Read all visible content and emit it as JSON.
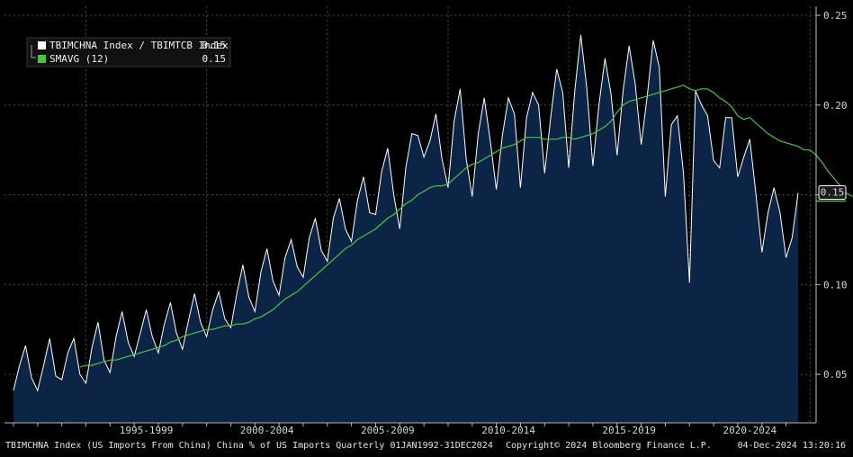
{
  "chart_data": {
    "type": "area",
    "x_start": "1992-Q1",
    "x_end": "2024-Q4",
    "frequency": "quarterly",
    "x_tick_labels": [
      "1995-1999",
      "2000-2004",
      "2005-2009",
      "2010-2014",
      "2015-2019",
      "2020-2024"
    ],
    "y_tick_labels": [
      "0.05",
      "0.10",
      "0.15",
      "0.20",
      "0.25"
    ],
    "y_ticks": [
      0.05,
      0.1,
      0.15,
      0.2,
      0.25
    ],
    "ylim": [
      0.023,
      0.255
    ],
    "grid": true,
    "legend_position": "top-left",
    "series": [
      {
        "name": "TBIMCHNA Index / TBIMTCB Index",
        "last_label": "0.15",
        "color": "#ffffff",
        "fill": "#0c2446",
        "values": [
          0.041,
          0.055,
          0.066,
          0.048,
          0.041,
          0.055,
          0.07,
          0.049,
          0.047,
          0.062,
          0.07,
          0.05,
          0.045,
          0.065,
          0.079,
          0.058,
          0.051,
          0.071,
          0.085,
          0.068,
          0.06,
          0.073,
          0.086,
          0.071,
          0.062,
          0.078,
          0.09,
          0.073,
          0.064,
          0.08,
          0.095,
          0.079,
          0.071,
          0.086,
          0.096,
          0.081,
          0.076,
          0.095,
          0.111,
          0.093,
          0.085,
          0.107,
          0.12,
          0.102,
          0.094,
          0.115,
          0.125,
          0.11,
          0.104,
          0.126,
          0.137,
          0.119,
          0.113,
          0.137,
          0.148,
          0.131,
          0.124,
          0.147,
          0.16,
          0.14,
          0.139,
          0.163,
          0.176,
          0.15,
          0.131,
          0.165,
          0.184,
          0.183,
          0.171,
          0.18,
          0.195,
          0.17,
          0.154,
          0.191,
          0.209,
          0.17,
          0.149,
          0.184,
          0.204,
          0.18,
          0.153,
          0.183,
          0.204,
          0.195,
          0.154,
          0.193,
          0.207,
          0.2,
          0.162,
          0.193,
          0.22,
          0.207,
          0.165,
          0.208,
          0.239,
          0.209,
          0.166,
          0.2,
          0.226,
          0.206,
          0.172,
          0.208,
          0.233,
          0.212,
          0.178,
          0.205,
          0.236,
          0.221,
          0.149,
          0.189,
          0.194,
          0.162,
          0.101,
          0.208,
          0.2,
          0.194,
          0.169,
          0.165,
          0.193,
          0.193,
          0.16,
          0.171,
          0.181,
          0.151,
          0.118,
          0.14,
          0.154,
          0.14,
          0.115,
          0.126,
          0.151
        ]
      },
      {
        "name": "SMAVG (12)",
        "last_label": "0.15",
        "color": "#46c83c",
        "start_index": 11,
        "values": [
          0.054,
          0.055,
          0.055,
          0.056,
          0.057,
          0.058,
          0.058,
          0.059,
          0.06,
          0.061,
          0.062,
          0.063,
          0.064,
          0.065,
          0.066,
          0.068,
          0.069,
          0.071,
          0.072,
          0.073,
          0.074,
          0.075,
          0.075,
          0.076,
          0.077,
          0.077,
          0.078,
          0.078,
          0.079,
          0.081,
          0.082,
          0.084,
          0.086,
          0.089,
          0.092,
          0.094,
          0.096,
          0.099,
          0.102,
          0.105,
          0.108,
          0.111,
          0.114,
          0.117,
          0.12,
          0.122,
          0.125,
          0.127,
          0.129,
          0.131,
          0.134,
          0.137,
          0.139,
          0.142,
          0.145,
          0.147,
          0.15,
          0.152,
          0.154,
          0.155,
          0.155,
          0.156,
          0.159,
          0.162,
          0.165,
          0.167,
          0.168,
          0.17,
          0.172,
          0.174,
          0.176,
          0.177,
          0.178,
          0.18,
          0.182,
          0.182,
          0.182,
          0.181,
          0.181,
          0.181,
          0.182,
          0.182,
          0.181,
          0.182,
          0.183,
          0.184,
          0.186,
          0.188,
          0.191,
          0.196,
          0.2,
          0.202,
          0.203,
          0.204,
          0.205,
          0.206,
          0.207,
          0.208,
          0.209,
          0.21,
          0.211,
          0.209,
          0.208,
          0.209,
          0.209,
          0.207,
          0.204,
          0.202,
          0.199,
          0.194,
          0.192,
          0.193,
          0.19,
          0.187,
          0.184,
          0.182,
          0.18,
          0.179,
          0.178,
          0.177,
          0.175,
          0.175,
          0.172,
          0.168,
          0.163,
          0.159,
          0.155,
          0.151,
          0.149
        ]
      }
    ]
  },
  "footer": {
    "left": "TBIMCHNA Index (US Imports From China) China % of US Imports  Quarterly 01JAN1992-31DEC2024",
    "center": "Copyright© 2024 Bloomberg Finance L.P.",
    "right": "04-Dec-2024 13:20:16"
  },
  "legend": {
    "items": [
      {
        "label": "TBIMCHNA Index / TBIMTCB Index",
        "value": "0.15",
        "color": "#ffffff"
      },
      {
        "label": "SMAVG (12)",
        "value": "0.15",
        "color": "#46c83c"
      }
    ]
  },
  "last_value_labels": {
    "ratio": "0.15",
    "smavg": "0.15"
  }
}
